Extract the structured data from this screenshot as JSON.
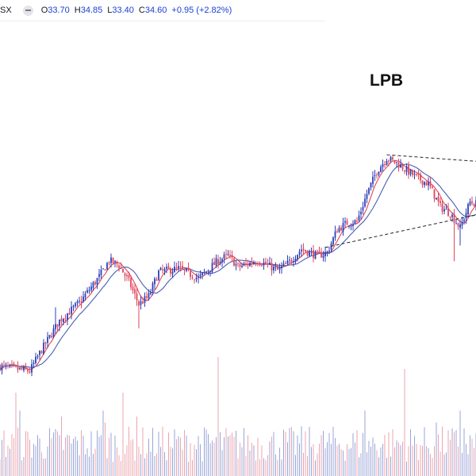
{
  "header": {
    "symbol": "SX",
    "open_label": "O",
    "open": "33.70",
    "high_label": "H",
    "high": "34.85",
    "low_label": "L",
    "low": "33.40",
    "close_label": "C",
    "close": "34.60",
    "change": "+0.95 (+2.82%)"
  },
  "colors": {
    "up_candle": "#2b3fb8",
    "down_candle": "#e0455a",
    "fast_ma": "#e0455a",
    "slow_ma": "#4a5fb5",
    "up_volume": "#9aa6d8",
    "down_volume": "#eba5ae",
    "trendline": "#222222",
    "header_value": "#1a3fd6"
  },
  "chart_data": {
    "type": "candlestick",
    "title": "LPB",
    "price_range": [
      18,
      38
    ],
    "legend": "none",
    "grid": false,
    "price_path": [
      {
        "bar": 0,
        "price": 22.8
      },
      {
        "bar": 15,
        "price": 22.5
      },
      {
        "bar": 20,
        "price": 23.6
      },
      {
        "bar": 30,
        "price": 25.6
      },
      {
        "bar": 40,
        "price": 26.7
      },
      {
        "bar": 50,
        "price": 28.3
      },
      {
        "bar": 55,
        "price": 29.3
      },
      {
        "bar": 60,
        "price": 29.0
      },
      {
        "bar": 65,
        "price": 28.0
      },
      {
        "bar": 70,
        "price": 26.6
      },
      {
        "bar": 75,
        "price": 27.1
      },
      {
        "bar": 80,
        "price": 28.6
      },
      {
        "bar": 90,
        "price": 28.8
      },
      {
        "bar": 100,
        "price": 28.2
      },
      {
        "bar": 110,
        "price": 29.3
      },
      {
        "bar": 115,
        "price": 29.6
      },
      {
        "bar": 120,
        "price": 28.9
      },
      {
        "bar": 130,
        "price": 29.3
      },
      {
        "bar": 140,
        "price": 28.7
      },
      {
        "bar": 145,
        "price": 29.1
      },
      {
        "bar": 152,
        "price": 30.0
      },
      {
        "bar": 160,
        "price": 29.6
      },
      {
        "bar": 165,
        "price": 29.8
      },
      {
        "bar": 170,
        "price": 31.2
      },
      {
        "bar": 175,
        "price": 31.6
      },
      {
        "bar": 180,
        "price": 31.7
      },
      {
        "bar": 185,
        "price": 33.4
      },
      {
        "bar": 190,
        "price": 34.8
      },
      {
        "bar": 195,
        "price": 35.6
      },
      {
        "bar": 200,
        "price": 35.3
      },
      {
        "bar": 210,
        "price": 34.4
      },
      {
        "bar": 216,
        "price": 34.0
      },
      {
        "bar": 222,
        "price": 32.6
      },
      {
        "bar": 227,
        "price": 32.2
      },
      {
        "bar": 232,
        "price": 31.3
      },
      {
        "bar": 237,
        "price": 32.9
      },
      {
        "bar": 240,
        "price": 32.8
      }
    ],
    "volume_spikes": [
      {
        "bar": 8,
        "level": 0.7
      },
      {
        "bar": 10,
        "level": 0.55
      },
      {
        "bar": 31,
        "level": 0.5
      },
      {
        "bar": 52,
        "level": 0.55
      },
      {
        "bar": 53,
        "level": 0.45
      },
      {
        "bar": 62,
        "level": 0.7
      },
      {
        "bar": 69,
        "level": 0.5
      },
      {
        "bar": 110,
        "level": 1.0
      },
      {
        "bar": 184,
        "level": 0.55
      },
      {
        "bar": 204,
        "level": 0.9
      },
      {
        "bar": 220,
        "level": 0.45
      },
      {
        "bar": 232,
        "level": 0.55
      },
      {
        "bar": 234,
        "level": 0.4
      }
    ],
    "trendlines": [
      {
        "style": "dashed",
        "from": {
          "bar": 164,
          "price": 30.1
        },
        "to": {
          "bar": 240,
          "price": 32.1
        }
      },
      {
        "style": "dashed",
        "from": {
          "bar": 195,
          "price": 35.8
        },
        "to": {
          "bar": 240,
          "price": 35.4
        }
      }
    ]
  }
}
